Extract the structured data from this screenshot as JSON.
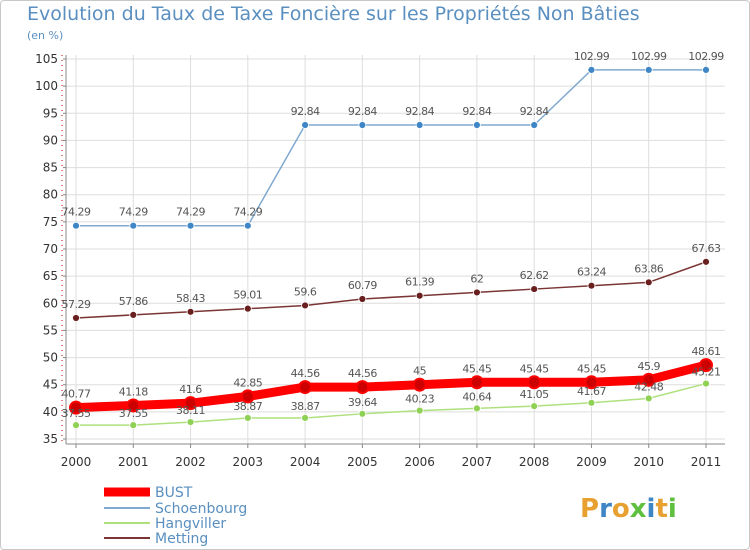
{
  "chart_data": {
    "type": "line",
    "title": "Evolution du Taux de Taxe Foncière sur les Propriétés Non Bâties",
    "subtitle": "(en %)",
    "xlabel": "",
    "ylabel": "",
    "ylim": [
      35,
      105
    ],
    "yticks": [
      35,
      40,
      45,
      50,
      55,
      60,
      65,
      70,
      75,
      80,
      85,
      90,
      95,
      100,
      105
    ],
    "x": [
      "2000",
      "2001",
      "2002",
      "2003",
      "2004",
      "2005",
      "2006",
      "2007",
      "2008",
      "2009",
      "2010",
      "2011"
    ],
    "series": [
      {
        "name": "BUST",
        "color": "#ff0000",
        "marker_color": "#cc0000",
        "values": [
          40.77,
          41.18,
          41.6,
          42.85,
          44.56,
          44.56,
          45,
          45.45,
          45.45,
          45.45,
          45.9,
          48.61
        ],
        "labels": [
          "40.77",
          "41.18",
          "41.6",
          "42.85",
          "44.56",
          "44.56",
          "45",
          "45.45",
          "45.45",
          "45.45",
          "45.9",
          "48.61"
        ]
      },
      {
        "name": "Schoenbourg",
        "color": "#7fa9d0",
        "marker_color": "#3f86c6",
        "values": [
          74.29,
          74.29,
          74.29,
          74.29,
          92.84,
          92.84,
          92.84,
          92.84,
          92.84,
          102.99,
          102.99,
          102.99
        ],
        "labels": [
          "74.29",
          "74.29",
          "74.29",
          "74.29",
          "92.84",
          "92.84",
          "92.84",
          "92.84",
          "92.84",
          "102.99",
          "102.99",
          "102.99"
        ]
      },
      {
        "name": "Hangviller",
        "color": "#aee07e",
        "marker_color": "#8fd155",
        "values": [
          37.55,
          37.55,
          38.11,
          38.87,
          38.87,
          39.64,
          40.23,
          40.64,
          41.05,
          41.67,
          42.48,
          45.21
        ],
        "labels": [
          "37.55",
          "37.55",
          "38.11",
          "38.87",
          "38.87",
          "39.64",
          "40.23",
          "40.64",
          "41.05",
          "41.67",
          "42.48",
          "45.21"
        ]
      },
      {
        "name": "Metting",
        "color": "#7b3535",
        "marker_color": "#6a1f1f",
        "values": [
          57.29,
          57.86,
          58.43,
          59.01,
          59.6,
          60.79,
          61.39,
          62,
          62.62,
          63.24,
          63.86,
          67.63
        ],
        "labels": [
          "57.29",
          "57.86",
          "58.43",
          "59.01",
          "59.6",
          "60.79",
          "61.39",
          "62",
          "62.62",
          "63.24",
          "63.86",
          "67.63"
        ]
      }
    ],
    "legend": [
      "BUST",
      "Schoenbourg",
      "Hangviller",
      "Metting"
    ],
    "legend_position": "bottom-left",
    "grid": true
  },
  "brand": {
    "logo_text": "Proxiti",
    "letter_colors": [
      "#e8a030",
      "#3f86c6",
      "#e8a030",
      "#5fbf3f",
      "#3f86c6",
      "#e8a030",
      "#5fbf3f"
    ]
  }
}
